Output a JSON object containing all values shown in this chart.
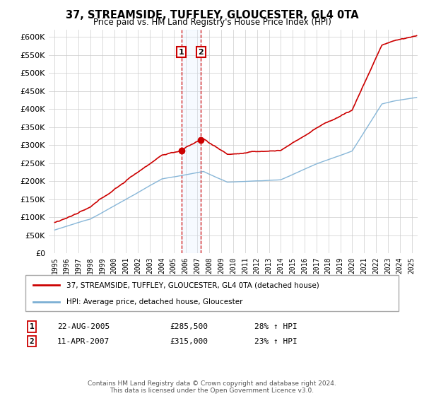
{
  "title": "37, STREAMSIDE, TUFFLEY, GLOUCESTER, GL4 0TA",
  "subtitle": "Price paid vs. HM Land Registry's House Price Index (HPI)",
  "legend_line1": "37, STREAMSIDE, TUFFLEY, GLOUCESTER, GL4 0TA (detached house)",
  "legend_line2": "HPI: Average price, detached house, Gloucester",
  "sale1_label": "1",
  "sale1_date": "22-AUG-2005",
  "sale1_price": "£285,500",
  "sale1_hpi": "28% ↑ HPI",
  "sale1_year": 2005.65,
  "sale1_value": 285500,
  "sale2_label": "2",
  "sale2_date": "11-APR-2007",
  "sale2_price": "£315,000",
  "sale2_hpi": "23% ↑ HPI",
  "sale2_year": 2007.28,
  "sale2_value": 315000,
  "hpi_color": "#7bafd4",
  "price_color": "#cc0000",
  "annotation_box_color": "#cc0000",
  "shading_color": "#ddeeff",
  "footer": "Contains HM Land Registry data © Crown copyright and database right 2024.\nThis data is licensed under the Open Government Licence v3.0.",
  "ylim": [
    0,
    620000
  ],
  "yticks": [
    0,
    50000,
    100000,
    150000,
    200000,
    250000,
    300000,
    350000,
    400000,
    450000,
    500000,
    550000,
    600000
  ],
  "xmin": 1994.5,
  "xmax": 2025.5
}
